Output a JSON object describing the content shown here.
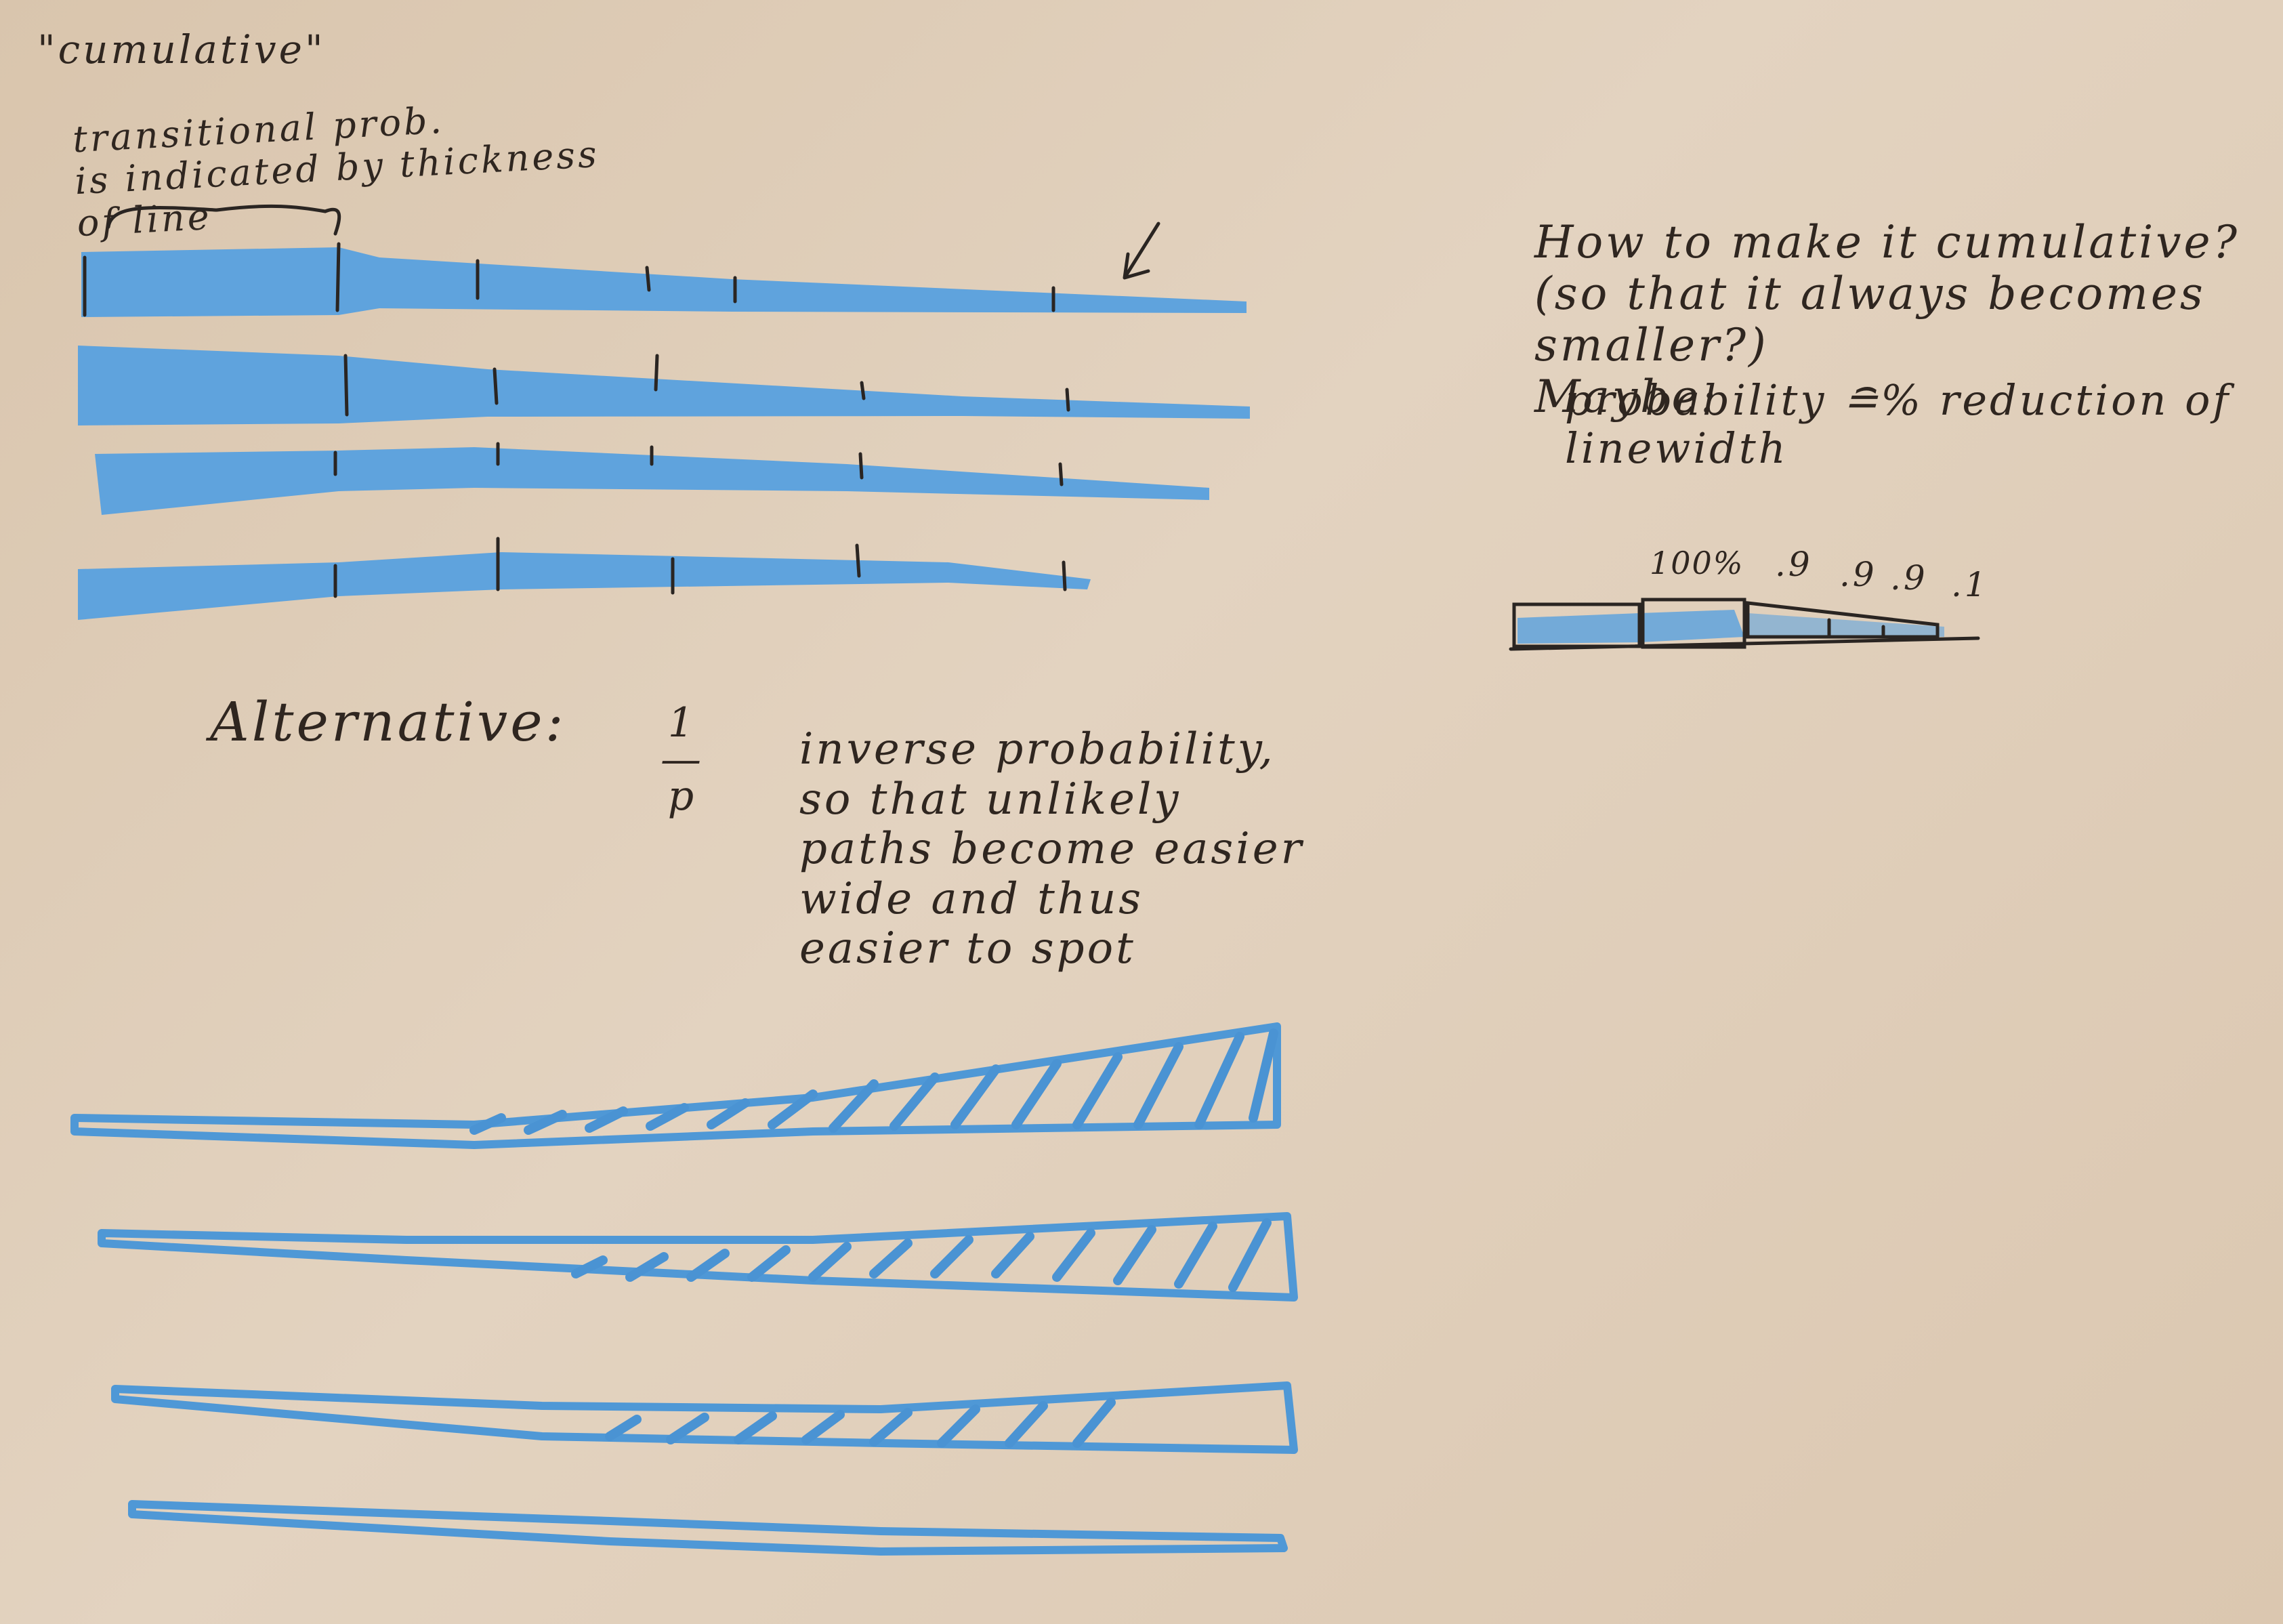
{
  "notes": {
    "cumulative_title": "\"cumulative\"",
    "transitional_note": "transitional prob.\nis indicated by thickness\nof line",
    "how_cumulative": "How to make it cumulative?\n(so that it always becomes smaller?)\nMaybe:",
    "maybe_text": "probability ≘% reduction of\nlinewidth",
    "alternative_label": "Alternative:",
    "one_over_p": "1\n—\np",
    "inverse_note": "inverse probability,\nso that unlikely\npaths become easier\nwide and thus\neasier to spot"
  },
  "example": {
    "labels": [
      "100%",
      ".9",
      ".9",
      ".9",
      ".1"
    ]
  },
  "colors": {
    "paper": "#dcc8b2",
    "marker": "#5fa3dd",
    "ink": "#2a2522"
  }
}
